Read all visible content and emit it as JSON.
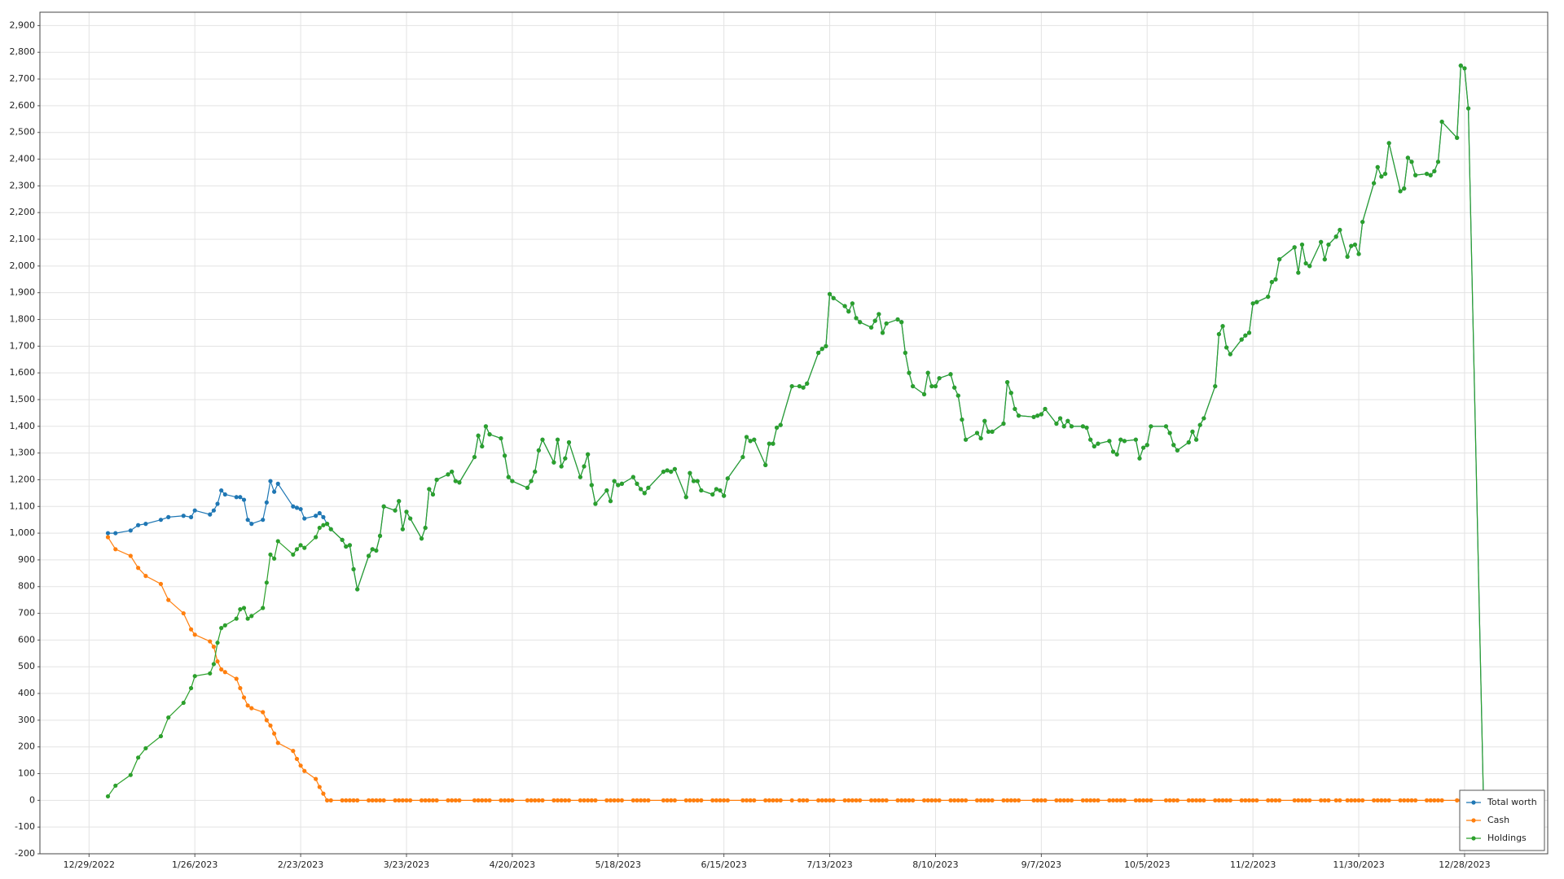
{
  "chart_data": {
    "type": "line",
    "x": [
      "2023-01-03",
      "2023-01-05",
      "2023-01-09",
      "2023-01-11",
      "2023-01-13",
      "2023-01-17",
      "2023-01-19",
      "2023-01-23",
      "2023-01-25",
      "2023-01-26",
      "2023-01-30",
      "2023-01-31",
      "2023-02-01",
      "2023-02-02",
      "2023-02-03",
      "2023-02-06",
      "2023-02-07",
      "2023-02-08",
      "2023-02-09",
      "2023-02-10",
      "2023-02-13",
      "2023-02-14",
      "2023-02-15",
      "2023-02-16",
      "2023-02-17",
      "2023-02-21",
      "2023-02-22",
      "2023-02-23",
      "2023-02-24",
      "2023-02-27",
      "2023-02-28",
      "2023-03-01",
      "2023-03-02",
      "2023-03-03",
      "2023-03-06",
      "2023-03-07",
      "2023-03-08",
      "2023-03-09",
      "2023-03-10",
      "2023-03-13",
      "2023-03-14",
      "2023-03-15",
      "2023-03-16",
      "2023-03-17",
      "2023-03-20",
      "2023-03-21",
      "2023-03-22",
      "2023-03-23",
      "2023-03-24",
      "2023-03-27",
      "2023-03-28",
      "2023-03-29",
      "2023-03-30",
      "2023-03-31",
      "2023-04-03",
      "2023-04-04",
      "2023-04-05",
      "2023-04-06",
      "2023-04-10",
      "2023-04-11",
      "2023-04-12",
      "2023-04-13",
      "2023-04-14",
      "2023-04-17",
      "2023-04-18",
      "2023-04-19",
      "2023-04-20",
      "2023-04-24",
      "2023-04-25",
      "2023-04-26",
      "2023-04-27",
      "2023-04-28",
      "2023-05-01",
      "2023-05-02",
      "2023-05-03",
      "2023-05-04",
      "2023-05-05",
      "2023-05-08",
      "2023-05-09",
      "2023-05-10",
      "2023-05-11",
      "2023-05-12",
      "2023-05-15",
      "2023-05-16",
      "2023-05-17",
      "2023-05-18",
      "2023-05-19",
      "2023-05-22",
      "2023-05-23",
      "2023-05-24",
      "2023-05-25",
      "2023-05-26",
      "2023-05-30",
      "2023-05-31",
      "2023-06-01",
      "2023-06-02",
      "2023-06-05",
      "2023-06-06",
      "2023-06-07",
      "2023-06-08",
      "2023-06-09",
      "2023-06-12",
      "2023-06-13",
      "2023-06-14",
      "2023-06-15",
      "2023-06-16",
      "2023-06-20",
      "2023-06-21",
      "2023-06-22",
      "2023-06-23",
      "2023-06-26",
      "2023-06-27",
      "2023-06-28",
      "2023-06-29",
      "2023-06-30",
      "2023-07-03",
      "2023-07-05",
      "2023-07-06",
      "2023-07-07",
      "2023-07-10",
      "2023-07-11",
      "2023-07-12",
      "2023-07-13",
      "2023-07-14",
      "2023-07-17",
      "2023-07-18",
      "2023-07-19",
      "2023-07-20",
      "2023-07-21",
      "2023-07-24",
      "2023-07-25",
      "2023-07-26",
      "2023-07-27",
      "2023-07-28",
      "2023-07-31",
      "2023-08-01",
      "2023-08-02",
      "2023-08-03",
      "2023-08-04",
      "2023-08-07",
      "2023-08-08",
      "2023-08-09",
      "2023-08-10",
      "2023-08-11",
      "2023-08-14",
      "2023-08-15",
      "2023-08-16",
      "2023-08-17",
      "2023-08-18",
      "2023-08-21",
      "2023-08-22",
      "2023-08-23",
      "2023-08-24",
      "2023-08-25",
      "2023-08-28",
      "2023-08-29",
      "2023-08-30",
      "2023-08-31",
      "2023-09-01",
      "2023-09-05",
      "2023-09-06",
      "2023-09-07",
      "2023-09-08",
      "2023-09-11",
      "2023-09-12",
      "2023-09-13",
      "2023-09-14",
      "2023-09-15",
      "2023-09-18",
      "2023-09-19",
      "2023-09-20",
      "2023-09-21",
      "2023-09-22",
      "2023-09-25",
      "2023-09-26",
      "2023-09-27",
      "2023-09-28",
      "2023-09-29",
      "2023-10-02",
      "2023-10-03",
      "2023-10-04",
      "2023-10-05",
      "2023-10-06",
      "2023-10-10",
      "2023-10-11",
      "2023-10-12",
      "2023-10-13",
      "2023-10-16",
      "2023-10-17",
      "2023-10-18",
      "2023-10-19",
      "2023-10-20",
      "2023-10-23",
      "2023-10-24",
      "2023-10-25",
      "2023-10-26",
      "2023-10-27",
      "2023-10-30",
      "2023-10-31",
      "2023-11-01",
      "2023-11-02",
      "2023-11-03",
      "2023-11-06",
      "2023-11-07",
      "2023-11-08",
      "2023-11-09",
      "2023-11-13",
      "2023-11-14",
      "2023-11-15",
      "2023-11-16",
      "2023-11-17",
      "2023-11-20",
      "2023-11-21",
      "2023-11-22",
      "2023-11-24",
      "2023-11-25",
      "2023-11-27",
      "2023-11-28",
      "2023-11-29",
      "2023-11-30",
      "2023-12-01",
      "2023-12-04",
      "2023-12-05",
      "2023-12-06",
      "2023-12-07",
      "2023-12-08",
      "2023-12-11",
      "2023-12-12",
      "2023-12-13",
      "2023-12-14",
      "2023-12-15",
      "2023-12-18",
      "2023-12-19",
      "2023-12-20",
      "2023-12-21",
      "2023-12-22",
      "2023-12-26",
      "2023-12-27",
      "2023-12-28",
      "2023-12-29",
      "2024-01-02"
    ],
    "series": [
      {
        "name": "Total worth",
        "color": "#1f77b4",
        "values": [
          1000,
          1000,
          1010,
          1030,
          1035,
          1050,
          1060,
          1065,
          1060,
          1085,
          1070,
          1085,
          1110,
          1160,
          1145,
          1135,
          1135,
          1125,
          1050,
          1035,
          1050,
          1115,
          1195,
          1155,
          1185,
          1100,
          1095,
          1090,
          1055,
          1065,
          1075,
          1060,
          1035,
          1015,
          975,
          950,
          955,
          865,
          790,
          915,
          940,
          935,
          990,
          1100,
          1085,
          1120,
          1015,
          1080,
          1055,
          980,
          1020,
          1165,
          1145,
          1200,
          1220,
          1230,
          1195,
          1190,
          1285,
          1365,
          1325,
          1400,
          1370,
          1355,
          1290,
          1210,
          1195,
          1170,
          1195,
          1230,
          1310,
          1350,
          1265,
          1350,
          1250,
          1280,
          1340,
          1210,
          1250,
          1295,
          1180,
          1110,
          1160,
          1120,
          1195,
          1180,
          1185,
          1210,
          1185,
          1165,
          1150,
          1170,
          1230,
          1235,
          1230,
          1240,
          1135,
          1225,
          1195,
          1195,
          1160,
          1145,
          1165,
          1160,
          1140,
          1205,
          1285,
          1360,
          1345,
          1350,
          1255,
          1335,
          1335,
          1395,
          1405,
          1550,
          1550,
          1545,
          1560,
          1675,
          1690,
          1700,
          1895,
          1880,
          1850,
          1830,
          1860,
          1805,
          1790,
          1770,
          1795,
          1820,
          1750,
          1785,
          1800,
          1790,
          1675,
          1600,
          1550,
          1520,
          1600,
          1550,
          1550,
          1580,
          1595,
          1545,
          1515,
          1425,
          1350,
          1375,
          1355,
          1420,
          1380,
          1380,
          1410,
          1565,
          1525,
          1465,
          1440,
          1435,
          1440,
          1445,
          1465,
          1410,
          1430,
          1400,
          1420,
          1400,
          1400,
          1395,
          1350,
          1325,
          1335,
          1345,
          1305,
          1295,
          1350,
          1345,
          1350,
          1280,
          1320,
          1330,
          1400,
          1400,
          1375,
          1330,
          1310,
          1340,
          1380,
          1350,
          1405,
          1430,
          1550,
          1745,
          1775,
          1695,
          1670,
          1725,
          1740,
          1750,
          1860,
          1865,
          1885,
          1940,
          1950,
          2025,
          2070,
          1975,
          2080,
          2010,
          2000,
          2090,
          2025,
          2080,
          2110,
          2135,
          2035,
          2075,
          2080,
          2045,
          2165,
          2310,
          2370,
          2335,
          2345,
          2460,
          2280,
          2290,
          2405,
          2390,
          2340,
          2345,
          2340,
          2355,
          2390,
          2540,
          2480,
          2750,
          2740,
          2590,
          0
        ]
      },
      {
        "name": "Cash",
        "color": "#ff7f0e",
        "values": [
          985,
          940,
          915,
          870,
          840,
          810,
          750,
          700,
          640,
          620,
          595,
          575,
          520,
          490,
          480,
          455,
          420,
          385,
          355,
          345,
          330,
          300,
          280,
          250,
          215,
          185,
          155,
          130,
          110,
          80,
          50,
          25,
          0,
          0,
          0,
          0,
          0,
          0,
          0,
          0,
          0,
          0,
          0,
          0,
          0,
          0,
          0,
          0,
          0,
          0,
          0,
          0,
          0,
          0,
          0,
          0,
          0,
          0,
          0,
          0,
          0,
          0,
          0,
          0,
          0,
          0,
          0,
          0,
          0,
          0,
          0,
          0,
          0,
          0,
          0,
          0,
          0,
          0,
          0,
          0,
          0,
          0,
          0,
          0,
          0,
          0,
          0,
          0,
          0,
          0,
          0,
          0,
          0,
          0,
          0,
          0,
          0,
          0,
          0,
          0,
          0,
          0,
          0,
          0,
          0,
          0,
          0,
          0,
          0,
          0,
          0,
          0,
          0,
          0,
          0,
          0,
          0,
          0,
          0,
          0,
          0,
          0,
          0,
          0,
          0,
          0,
          0,
          0,
          0,
          0,
          0,
          0,
          0,
          0,
          0,
          0,
          0,
          0,
          0,
          0,
          0,
          0,
          0,
          0,
          0,
          0,
          0,
          0,
          0,
          0,
          0,
          0,
          0,
          0,
          0,
          0,
          0,
          0,
          0,
          0,
          0,
          0,
          0,
          0,
          0,
          0,
          0,
          0,
          0,
          0,
          0,
          0,
          0,
          0,
          0,
          0,
          0,
          0,
          0,
          0,
          0,
          0,
          0,
          0,
          0,
          0,
          0,
          0,
          0,
          0,
          0,
          0,
          0,
          0,
          0,
          0,
          0,
          0,
          0,
          0,
          0,
          0,
          0,
          0,
          0,
          0,
          0,
          0,
          0,
          0,
          0,
          0,
          0,
          0,
          0,
          0,
          0,
          0,
          0,
          0,
          0,
          0,
          0,
          0,
          0,
          0,
          0,
          0,
          0,
          0,
          0,
          0,
          0,
          0,
          0,
          0,
          0,
          0,
          0,
          0,
          0
        ]
      },
      {
        "name": "Holdings",
        "color": "#2ca02c",
        "values": [
          15,
          55,
          95,
          160,
          195,
          240,
          310,
          365,
          420,
          465,
          475,
          510,
          590,
          645,
          655,
          680,
          715,
          720,
          680,
          690,
          720,
          815,
          920,
          905,
          970,
          920,
          940,
          955,
          945,
          985,
          1020,
          1030,
          1035,
          1015,
          975,
          950,
          955,
          865,
          790,
          915,
          940,
          935,
          990,
          1100,
          1085,
          1120,
          1015,
          1080,
          1055,
          980,
          1020,
          1165,
          1145,
          1200,
          1220,
          1230,
          1195,
          1190,
          1285,
          1365,
          1325,
          1400,
          1370,
          1355,
          1290,
          1210,
          1195,
          1170,
          1195,
          1230,
          1310,
          1350,
          1265,
          1350,
          1250,
          1280,
          1340,
          1210,
          1250,
          1295,
          1180,
          1110,
          1160,
          1120,
          1195,
          1180,
          1185,
          1210,
          1185,
          1165,
          1150,
          1170,
          1230,
          1235,
          1230,
          1240,
          1135,
          1225,
          1195,
          1195,
          1160,
          1145,
          1165,
          1160,
          1140,
          1205,
          1285,
          1360,
          1345,
          1350,
          1255,
          1335,
          1335,
          1395,
          1405,
          1550,
          1550,
          1545,
          1560,
          1675,
          1690,
          1700,
          1895,
          1880,
          1850,
          1830,
          1860,
          1805,
          1790,
          1770,
          1795,
          1820,
          1750,
          1785,
          1800,
          1790,
          1675,
          1600,
          1550,
          1520,
          1600,
          1550,
          1550,
          1580,
          1595,
          1545,
          1515,
          1425,
          1350,
          1375,
          1355,
          1420,
          1380,
          1380,
          1410,
          1565,
          1525,
          1465,
          1440,
          1435,
          1440,
          1445,
          1465,
          1410,
          1430,
          1400,
          1420,
          1400,
          1400,
          1395,
          1350,
          1325,
          1335,
          1345,
          1305,
          1295,
          1350,
          1345,
          1350,
          1280,
          1320,
          1330,
          1400,
          1400,
          1375,
          1330,
          1310,
          1340,
          1380,
          1350,
          1405,
          1430,
          1550,
          1745,
          1775,
          1695,
          1670,
          1725,
          1740,
          1750,
          1860,
          1865,
          1885,
          1940,
          1950,
          2025,
          2070,
          1975,
          2080,
          2010,
          2000,
          2090,
          2025,
          2080,
          2110,
          2135,
          2035,
          2075,
          2080,
          2045,
          2165,
          2310,
          2370,
          2335,
          2345,
          2460,
          2280,
          2290,
          2405,
          2390,
          2340,
          2345,
          2340,
          2355,
          2390,
          2540,
          2480,
          2750,
          2740,
          2590,
          0
        ]
      }
    ],
    "xlim": [
      "2022-12-16",
      "2024-01-19"
    ],
    "xticks": [
      {
        "value": "2022-12-29",
        "label": "12/29/2022"
      },
      {
        "value": "2023-01-26",
        "label": "1/26/2023"
      },
      {
        "value": "2023-02-23",
        "label": "2/23/2023"
      },
      {
        "value": "2023-03-23",
        "label": "3/23/2023"
      },
      {
        "value": "2023-04-20",
        "label": "4/20/2023"
      },
      {
        "value": "2023-05-18",
        "label": "5/18/2023"
      },
      {
        "value": "2023-06-15",
        "label": "6/15/2023"
      },
      {
        "value": "2023-07-13",
        "label": "7/13/2023"
      },
      {
        "value": "2023-08-10",
        "label": "8/10/2023"
      },
      {
        "value": "2023-09-07",
        "label": "9/7/2023"
      },
      {
        "value": "2023-10-05",
        "label": "10/5/2023"
      },
      {
        "value": "2023-11-02",
        "label": "11/2/2023"
      },
      {
        "value": "2023-11-30",
        "label": "11/30/2023"
      },
      {
        "value": "2023-12-28",
        "label": "12/28/2023"
      }
    ],
    "ylim": [
      -200,
      2950
    ],
    "yticks": [
      -200,
      -100,
      0,
      100,
      200,
      300,
      400,
      500,
      600,
      700,
      800,
      900,
      {
        "value": 1000,
        "label": "1,000"
      },
      {
        "value": 1100,
        "label": "1,100"
      },
      {
        "value": 1200,
        "label": "1,200"
      },
      {
        "value": 1300,
        "label": "1,300"
      },
      {
        "value": 1400,
        "label": "1,400"
      },
      {
        "value": 1500,
        "label": "1,500"
      },
      {
        "value": 1600,
        "label": "1,600"
      },
      {
        "value": 1700,
        "label": "1,700"
      },
      {
        "value": 1800,
        "label": "1,800"
      },
      {
        "value": 1900,
        "label": "1,900"
      },
      {
        "value": 2000,
        "label": "2,000"
      },
      {
        "value": 2100,
        "label": "2,100"
      },
      {
        "value": 2200,
        "label": "2,200"
      },
      {
        "value": 2300,
        "label": "2,300"
      },
      {
        "value": 2400,
        "label": "2,400"
      },
      {
        "value": 2500,
        "label": "2,500"
      },
      {
        "value": 2600,
        "label": "2,600"
      },
      {
        "value": 2700,
        "label": "2,700"
      },
      {
        "value": 2800,
        "label": "2,800"
      },
      {
        "value": 2900,
        "label": "2,900"
      }
    ],
    "grid": true,
    "markers": true,
    "legend": "bottom-right"
  }
}
